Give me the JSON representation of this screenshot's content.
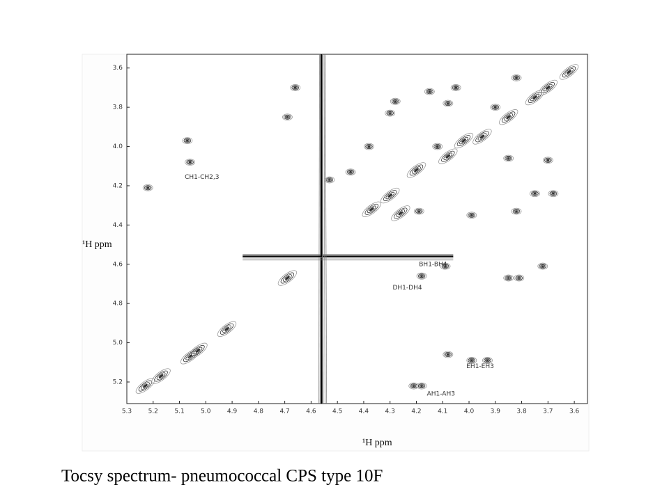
{
  "chart_data": {
    "type": "contour-peaks",
    "title": "Tocsy spectrum- pneumococcal CPS type 10F",
    "x_label": "¹H ppm",
    "y_label": "¹H ppm",
    "xlim": [
      5.3,
      3.55
    ],
    "ylim": [
      5.31,
      3.53
    ],
    "xticks": [
      5.3,
      5.2,
      5.1,
      {
        "value": 5.0,
        "label": "5.0"
      },
      4.9,
      4.8,
      4.7,
      4.6,
      4.5,
      4.4,
      4.3,
      4.2,
      4.1,
      {
        "value": 4.0,
        "label": "4.0"
      },
      3.9,
      3.8,
      3.7,
      3.6
    ],
    "yticks": [
      3.6,
      3.8,
      {
        "value": 4.0,
        "label": "4.0"
      },
      4.2,
      4.4,
      4.6,
      4.8,
      {
        "value": 5.0,
        "label": "5.0"
      },
      5.2
    ],
    "color": "#333333",
    "water_ridge": 4.56,
    "series": [
      {
        "name": "cross peaks",
        "x": [
          5.22,
          5.07,
          5.06,
          4.66,
          4.69,
          4.69,
          4.92,
          5.23,
          5.17,
          5.06,
          5.03,
          4.21,
          4.18,
          4.08,
          3.99,
          3.93,
          3.85,
          3.81,
          3.72,
          4.18,
          4.09,
          4.3,
          4.28,
          4.02,
          3.95,
          3.85,
          3.75,
          3.7,
          3.62,
          3.82,
          3.9,
          4.08,
          4.2,
          4.3,
          4.37,
          3.99,
          3.82,
          3.75,
          3.68,
          3.85,
          3.7,
          4.05,
          4.15,
          4.08,
          4.12,
          4.38,
          4.45,
          4.53,
          4.19,
          4.26
        ],
        "y": [
          4.21,
          3.97,
          4.08,
          3.7,
          3.85,
          4.67,
          4.93,
          5.22,
          5.17,
          5.07,
          5.04,
          5.22,
          5.22,
          5.06,
          5.09,
          5.09,
          4.67,
          4.67,
          4.61,
          4.66,
          4.61,
          3.83,
          3.77,
          3.97,
          3.95,
          3.85,
          3.75,
          3.7,
          3.62,
          3.65,
          3.8,
          4.05,
          4.12,
          4.25,
          4.32,
          4.35,
          4.33,
          4.24,
          4.24,
          4.06,
          4.07,
          3.7,
          3.72,
          3.78,
          4.0,
          4.0,
          4.13,
          4.17,
          4.33,
          4.34
        ]
      }
    ],
    "annotations": [
      {
        "text": "CH1-CH2,3",
        "x": 5.08,
        "y": 4.155
      },
      {
        "text": "BH1-BH4",
        "x": 4.19,
        "y": 4.6
      },
      {
        "text": "DH1-DH4",
        "x": 4.29,
        "y": 4.72
      },
      {
        "text": "EH1-EH3",
        "x": 4.01,
        "y": 5.12
      },
      {
        "text": "AH1-AH3",
        "x": 4.16,
        "y": 5.26
      }
    ]
  }
}
